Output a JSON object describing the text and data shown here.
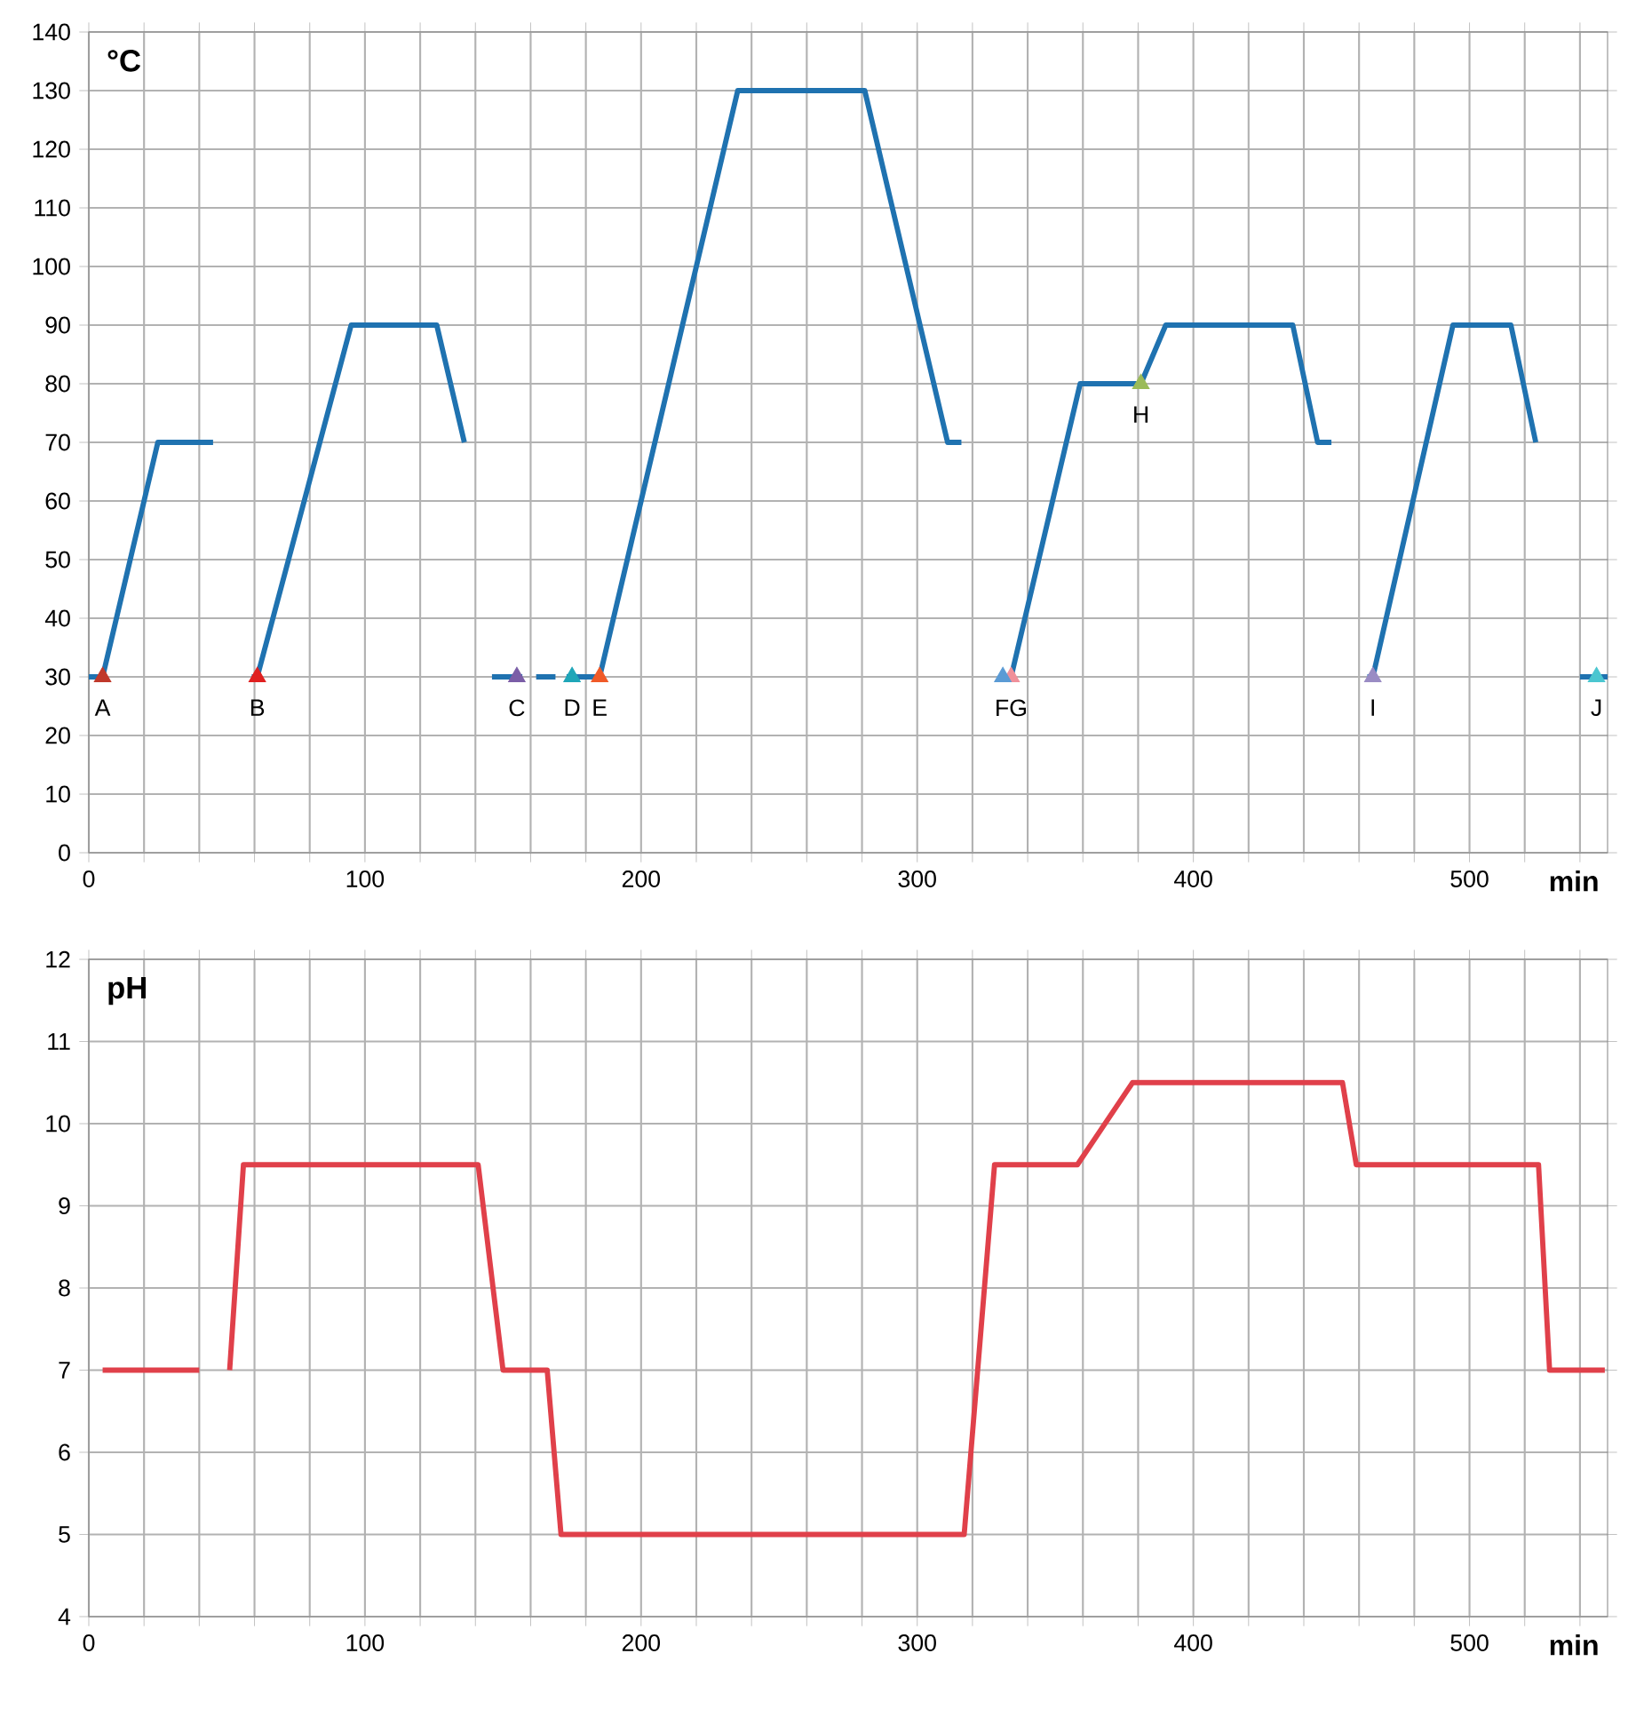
{
  "chart_data": [
    {
      "type": "line",
      "ylabel": "°C",
      "xlabel": "min",
      "xlim": [
        0,
        550
      ],
      "ylim": [
        0,
        140
      ],
      "grid": true,
      "xticks": [
        0,
        {
          "value": 20,
          "label": null
        },
        {
          "value": 40,
          "label": null
        },
        {
          "value": 60,
          "label": null
        },
        {
          "value": 80,
          "label": null
        },
        100,
        {
          "value": 120,
          "label": null
        },
        {
          "value": 140,
          "label": null
        },
        {
          "value": 160,
          "label": null
        },
        {
          "value": 180,
          "label": null
        },
        200,
        {
          "value": 220,
          "label": null
        },
        {
          "value": 240,
          "label": null
        },
        {
          "value": 260,
          "label": null
        },
        {
          "value": 280,
          "label": null
        },
        300,
        {
          "value": 320,
          "label": null
        },
        {
          "value": 340,
          "label": null
        },
        {
          "value": 360,
          "label": null
        },
        {
          "value": 380,
          "label": null
        },
        400,
        {
          "value": 420,
          "label": null
        },
        {
          "value": 440,
          "label": null
        },
        {
          "value": 460,
          "label": null
        },
        {
          "value": 480,
          "label": null
        },
        500,
        {
          "value": 520,
          "label": null
        },
        {
          "value": 540,
          "label": null
        }
      ],
      "yticks": [
        0,
        10,
        20,
        30,
        40,
        50,
        60,
        70,
        80,
        90,
        100,
        110,
        120,
        130,
        140
      ],
      "series": [
        {
          "color": "#1f72b0",
          "x": [
            0,
            5,
            25,
            45,
            52,
            59,
            61,
            95,
            126,
            136,
            141,
            146,
            157,
            159.5,
            162,
            169,
            171,
            173,
            185,
            235,
            281,
            311,
            316,
            323,
            330,
            334,
            359,
            381,
            390,
            436,
            445,
            450,
            456,
            463,
            465,
            494,
            515,
            524,
            532,
            540,
            550
          ],
          "values": [
            30,
            30,
            70,
            70,
            null,
            30,
            30,
            90,
            90,
            70,
            null,
            30,
            30,
            null,
            30,
            30,
            null,
            30,
            30,
            130,
            130,
            70,
            70,
            null,
            30,
            30,
            80,
            80,
            90,
            90,
            70,
            70,
            null,
            30,
            30,
            90,
            90,
            70,
            null,
            30,
            30
          ]
        },
        {
          "type": "scatter",
          "marker": "triangle",
          "x": [
            5,
            61,
            155,
            175,
            185,
            334,
            331,
            381,
            465,
            546
          ],
          "values": [
            30,
            30,
            30,
            30,
            30,
            30,
            30,
            80,
            30,
            30
          ],
          "colors": [
            "#c0392b",
            "#e02020",
            "#7b5ea7",
            "#1fa6b8",
            "#f05a28",
            "#f0909a",
            "#5b9bd5",
            "#9bbb59",
            "#9a8cc4",
            "#4bc6d0"
          ]
        }
      ],
      "annotations": [
        {
          "text": "A",
          "x": 5,
          "y": 30
        },
        {
          "text": "B",
          "x": 61,
          "y": 30
        },
        {
          "text": "C",
          "x": 155,
          "y": 30
        },
        {
          "text": "D",
          "x": 175,
          "y": 30
        },
        {
          "text": "E",
          "x": 185,
          "y": 30
        },
        {
          "text": "FG",
          "x": 334,
          "y": 30
        },
        {
          "text": "H",
          "x": 381,
          "y": 80
        },
        {
          "text": "I",
          "x": 465,
          "y": 30
        },
        {
          "text": "J",
          "x": 546,
          "y": 30
        }
      ]
    },
    {
      "type": "line",
      "ylabel": "pH",
      "xlabel": "min",
      "xlim": [
        0,
        550
      ],
      "ylim": [
        4,
        12
      ],
      "grid": true,
      "xticks": [
        0,
        {
          "value": 20,
          "label": null
        },
        {
          "value": 40,
          "label": null
        },
        {
          "value": 60,
          "label": null
        },
        {
          "value": 80,
          "label": null
        },
        100,
        {
          "value": 120,
          "label": null
        },
        {
          "value": 140,
          "label": null
        },
        {
          "value": 160,
          "label": null
        },
        {
          "value": 180,
          "label": null
        },
        200,
        {
          "value": 220,
          "label": null
        },
        {
          "value": 240,
          "label": null
        },
        {
          "value": 260,
          "label": null
        },
        {
          "value": 280,
          "label": null
        },
        300,
        {
          "value": 320,
          "label": null
        },
        {
          "value": 340,
          "label": null
        },
        {
          "value": 360,
          "label": null
        },
        {
          "value": 380,
          "label": null
        },
        400,
        {
          "value": 420,
          "label": null
        },
        {
          "value": 440,
          "label": null
        },
        {
          "value": 460,
          "label": null
        },
        {
          "value": 480,
          "label": null
        },
        500,
        {
          "value": 520,
          "label": null
        },
        {
          "value": 540,
          "label": null
        }
      ],
      "yticks": [
        4,
        5,
        6,
        7,
        8,
        9,
        10,
        11,
        12
      ],
      "series": [
        {
          "color": "#e0404a",
          "x": [
            5,
            40,
            45,
            51,
            56,
            141,
            150,
            166,
            171,
            317,
            328,
            358,
            378,
            454,
            459,
            525,
            529,
            549
          ],
          "values": [
            7,
            7,
            null,
            7,
            9.5,
            9.5,
            7,
            7,
            5,
            5,
            9.5,
            9.5,
            10.5,
            10.5,
            9.5,
            9.5,
            7,
            7
          ]
        }
      ]
    }
  ]
}
